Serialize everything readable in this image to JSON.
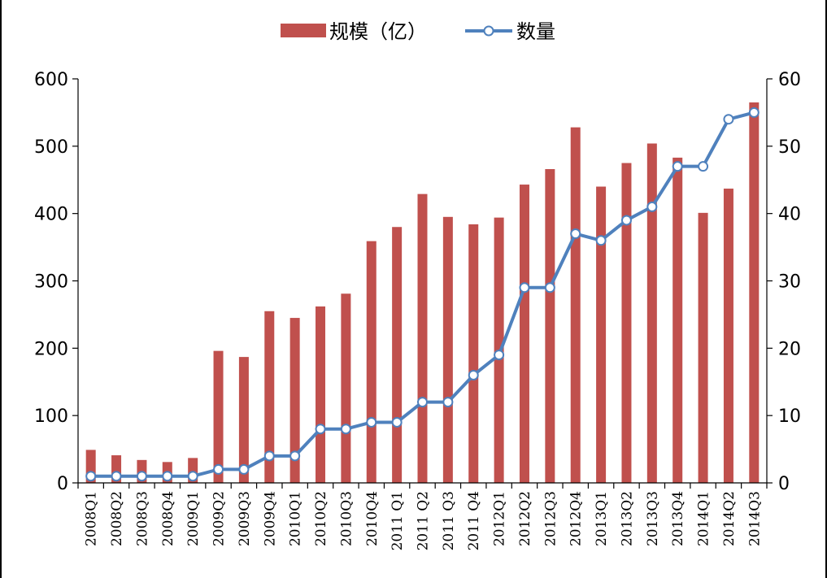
{
  "chart_data": {
    "type": "bar",
    "categories": [
      "2008Q1",
      "2008Q2",
      "2008Q3",
      "2008Q4",
      "2009Q1",
      "2009Q2",
      "2009Q3",
      "2009Q4",
      "2010Q1",
      "2010Q2",
      "2010Q3",
      "2010Q4",
      "2011 Q1",
      "2011 Q2",
      "2011 Q3",
      "2011 Q4",
      "2012Q1",
      "2012Q2",
      "2012Q3",
      "2012Q4",
      "2013Q1",
      "2013Q2",
      "2013Q3",
      "2013Q4",
      "2014Q1",
      "2014Q2",
      "2014Q3"
    ],
    "series": [
      {
        "name": "规模（亿）",
        "type": "bar",
        "axis": "left",
        "values": [
          49,
          41,
          34,
          31,
          37,
          196,
          187,
          255,
          245,
          262,
          281,
          359,
          380,
          429,
          395,
          384,
          394,
          443,
          466,
          528,
          440,
          475,
          504,
          483,
          401,
          437,
          565
        ]
      },
      {
        "name": "数量",
        "type": "line",
        "axis": "right",
        "values": [
          1,
          1,
          1,
          1,
          1,
          2,
          2,
          4,
          4,
          8,
          8,
          9,
          9,
          12,
          12,
          16,
          19,
          29,
          29,
          37,
          36,
          39,
          41,
          47,
          47,
          54,
          55
        ]
      }
    ],
    "y_left": {
      "range": [
        0,
        600
      ],
      "ticks": [
        "0",
        "100",
        "200",
        "300",
        "400",
        "500",
        "600"
      ]
    },
    "y_right": {
      "range": [
        0,
        60
      ],
      "ticks": [
        "0",
        "10",
        "20",
        "30",
        "40",
        "50",
        "60"
      ]
    },
    "grid": false,
    "legend": "top-center",
    "colors": {
      "bar": "#c0504d",
      "line": "#4f81bd",
      "marker_fill": "#ffffff"
    }
  }
}
